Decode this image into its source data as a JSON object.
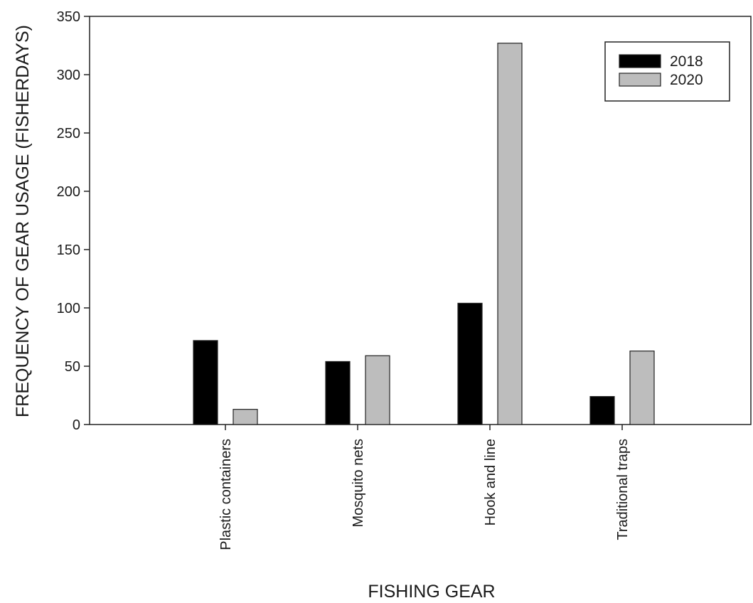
{
  "chart_data": {
    "type": "bar",
    "title": "",
    "xlabel": "FISHING GEAR",
    "ylabel": "FREQUENCY OF GEAR USAGE (FISHERDAYS)",
    "categories": [
      "Plastic containers",
      "Mosquito nets",
      "Hook and line",
      "Traditional traps"
    ],
    "series": [
      {
        "name": "2018",
        "values": [
          72,
          54,
          104,
          24
        ],
        "color": "#000000"
      },
      {
        "name": "2020",
        "values": [
          13,
          59,
          327,
          63
        ],
        "color": "#bdbdbd"
      }
    ],
    "ylim": [
      0,
      350
    ],
    "yticks": [
      0,
      50,
      100,
      150,
      200,
      250,
      300,
      350
    ],
    "grid": false,
    "legend_position": "top-right"
  }
}
